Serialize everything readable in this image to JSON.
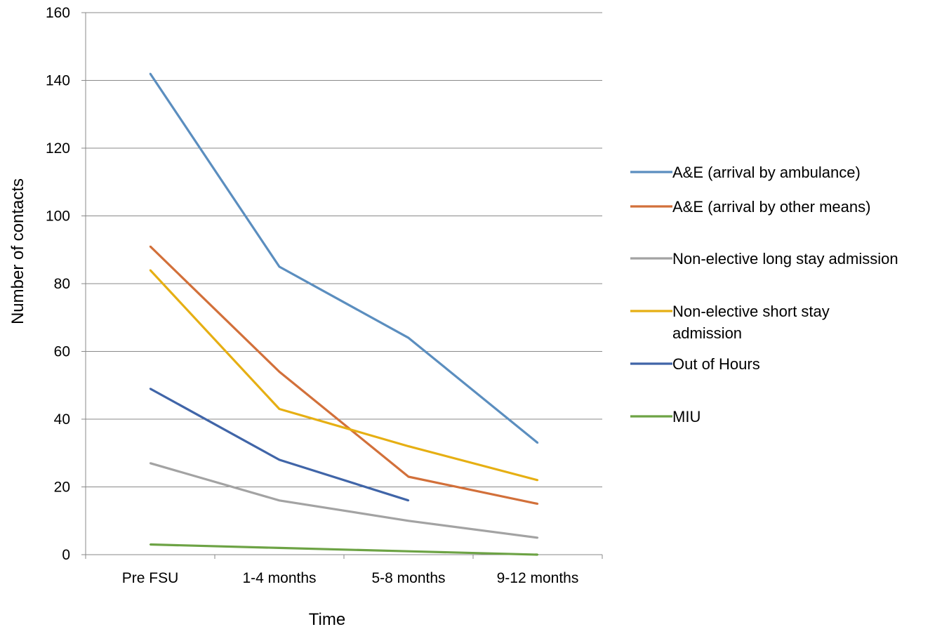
{
  "chart_data": {
    "type": "line",
    "title": "",
    "xlabel": "Time",
    "ylabel": "Number of contacts",
    "categories": [
      "Pre FSU",
      "1-4 months",
      "5-8 months",
      "9-12 months"
    ],
    "ylim": [
      0,
      160
    ],
    "yticks": [
      0,
      20,
      40,
      60,
      80,
      100,
      120,
      140,
      160
    ],
    "grid": "horizontal",
    "legend_position": "right",
    "series": [
      {
        "name": "A&E (arrival by ambulance)",
        "color": "#5B8EBF",
        "values": [
          142,
          85,
          64,
          33
        ]
      },
      {
        "name": "A&E (arrival by other means)",
        "color": "#D2703A",
        "values": [
          91,
          54,
          23,
          15
        ]
      },
      {
        "name": "Non-elective long stay admission",
        "color": "#A3A3A3",
        "values": [
          27,
          16,
          10,
          5
        ]
      },
      {
        "name": "Non-elective short stay admission",
        "color": "#E6AF13",
        "values": [
          84,
          43,
          32,
          22
        ]
      },
      {
        "name": "Out of Hours",
        "color": "#4065A8",
        "values": [
          49,
          28,
          16,
          null
        ]
      },
      {
        "name": "MIU",
        "color": "#6DA345",
        "values": [
          3,
          2,
          1,
          0
        ]
      }
    ]
  }
}
